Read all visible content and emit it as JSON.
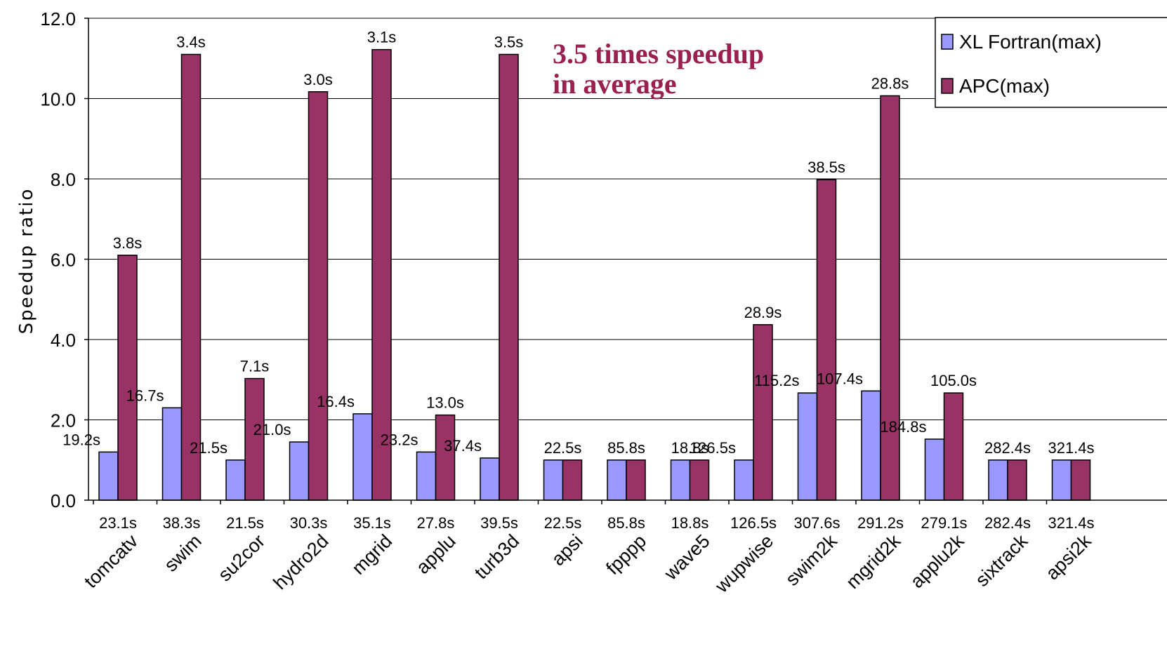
{
  "chart_data": {
    "type": "bar",
    "ylabel": "Speedup ratio",
    "ylim": [
      0,
      12
    ],
    "yticks": [
      "0.0",
      "2.0",
      "4.0",
      "6.0",
      "8.0",
      "10.0",
      "12.0"
    ],
    "grid": true,
    "legend_position": "top-right",
    "annotation": [
      "3.5 times speedup",
      "in average"
    ],
    "categories": [
      "tomcatv",
      "swim",
      "su2cor",
      "hydro2d",
      "mgrid",
      "applu",
      "turb3d",
      "apsi",
      "fpppp",
      "wave5",
      "wupwise",
      "swim2k",
      "mgrid2k",
      "applu2k",
      "sixtrack",
      "apsi2k"
    ],
    "sequential_times": [
      "23.1s",
      "38.3s",
      "21.5s",
      "30.3s",
      "35.1s",
      "27.8s",
      "39.5s",
      "22.5s",
      "85.8s",
      "18.8s",
      "126.5s",
      "307.6s",
      "291.2s",
      "279.1s",
      "282.4s",
      "321.4s"
    ],
    "series": [
      {
        "name": "XL Fortran(max)",
        "color": "#9999ff",
        "values": [
          1.2,
          2.3,
          1.0,
          1.45,
          2.15,
          1.2,
          1.05,
          1.0,
          1.0,
          1.0,
          1.0,
          2.67,
          2.72,
          1.52,
          1.0,
          1.0
        ],
        "labels": [
          "19.2s",
          "16.7s",
          "21.5s",
          "21.0s",
          "16.4s",
          "23.2s",
          "37.4s",
          "22.5s",
          "85.8s",
          "18.8s",
          "126.5s",
          "115.2s",
          "107.4s",
          "184.8s",
          "282.4s",
          "321.4s"
        ]
      },
      {
        "name": "APC(max)",
        "color": "#993366",
        "values": [
          6.1,
          11.1,
          3.03,
          10.17,
          11.22,
          2.12,
          11.1,
          1.0,
          1.0,
          1.0,
          4.37,
          7.98,
          10.07,
          2.67,
          1.0,
          1.0
        ],
        "labels": [
          "3.8s",
          "3.4s",
          "7.1s",
          "3.0s",
          "3.1s",
          "13.0s",
          "3.5s",
          "",
          "",
          "",
          "28.9s",
          "38.5s",
          "28.8s",
          "105.0s",
          "",
          ""
        ]
      }
    ]
  },
  "colors": {
    "annotation": "#99204f",
    "grid": "#000000"
  }
}
